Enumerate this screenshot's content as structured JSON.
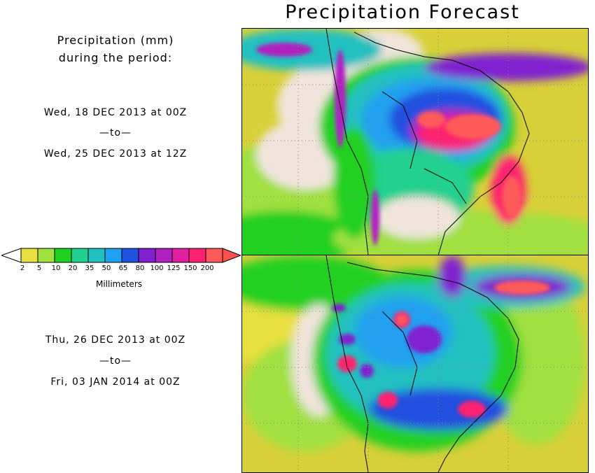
{
  "title": "Precipitation Forecast",
  "subtitle_line1": "Precipitation (mm)",
  "subtitle_line2": "during the period:",
  "period1": {
    "start": "Wed, 18 DEC 2013 at 00Z",
    "sep": "—to—",
    "end": "Wed, 25 DEC 2013 at 12Z"
  },
  "period2": {
    "start": "Thu, 26 DEC 2013 at 00Z",
    "sep": "—to—",
    "end": "Fri, 03 JAN 2014 at 00Z"
  },
  "legend": {
    "unit": "Millimeters",
    "ticks": [
      "2",
      "5",
      "10",
      "20",
      "35",
      "50",
      "65",
      "80",
      "100",
      "125",
      "150",
      "200"
    ],
    "under_color": "#ffffff",
    "over_color": "#ff5050",
    "colors": [
      "#e8e040",
      "#a0e040",
      "#20d020",
      "#20d090",
      "#20c0c0",
      "#20a0f0",
      "#2050e0",
      "#8020d0",
      "#b020c0",
      "#e020a0",
      "#ff2070",
      "#ff5a5a"
    ]
  },
  "colors": {
    "land_dry": "#f0e4dc",
    "ocean_light": "#d8d038"
  }
}
